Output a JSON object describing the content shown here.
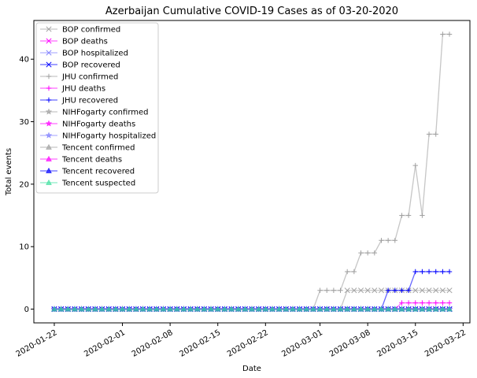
{
  "chart_data": {
    "type": "line",
    "title": "Azerbaijan Cumulative COVID-19 Cases as of 03-20-2020",
    "xlabel": "Date",
    "ylabel": "Total events",
    "x_start": "2020-01-22",
    "x_end": "2020-03-20",
    "xlim": [
      "2020-01-19",
      "2020-03-23"
    ],
    "ylim": [
      -2.2,
      46.2
    ],
    "grid": false,
    "legend_position": "top-left",
    "x_tick_labels": [
      "2020-01-22",
      "2020-02-01",
      "2020-02-08",
      "2020-02-15",
      "2020-02-22",
      "2020-03-01",
      "2020-03-08",
      "2020-03-15",
      "2020-03-22"
    ],
    "y_ticks": [
      0,
      10,
      20,
      30,
      40
    ],
    "series": [
      {
        "name": "BOP confirmed",
        "color": "#a0a0a0",
        "marker": "x",
        "points": [
          [
            "2020-01-22",
            0
          ],
          [
            "2020-03-02",
            0
          ],
          [
            "2020-03-04",
            0
          ],
          [
            "2020-03-05",
            3
          ],
          [
            "2020-03-20",
            3
          ]
        ]
      },
      {
        "name": "BOP deaths",
        "color": "#ff00ff",
        "marker": "x",
        "points": [
          [
            "2020-01-22",
            0
          ],
          [
            "2020-03-20",
            0
          ]
        ]
      },
      {
        "name": "BOP hospitalized",
        "color": "#8080ff",
        "marker": "x",
        "points": [
          [
            "2020-01-22",
            0
          ],
          [
            "2020-03-20",
            0
          ]
        ]
      },
      {
        "name": "BOP recovered",
        "color": "#0000ff",
        "marker": "x",
        "points": [
          [
            "2020-01-22",
            0
          ],
          [
            "2020-03-20",
            0
          ]
        ]
      },
      {
        "name": "JHU confirmed",
        "color": "#a0a0a0",
        "marker": "+",
        "points": [
          [
            "2020-01-22",
            0
          ],
          [
            "2020-02-29",
            0
          ],
          [
            "2020-03-01",
            3
          ],
          [
            "2020-03-04",
            3
          ],
          [
            "2020-03-05",
            6
          ],
          [
            "2020-03-06",
            6
          ],
          [
            "2020-03-07",
            9
          ],
          [
            "2020-03-09",
            9
          ],
          [
            "2020-03-10",
            11
          ],
          [
            "2020-03-12",
            11
          ],
          [
            "2020-03-13",
            15
          ],
          [
            "2020-03-14",
            15
          ],
          [
            "2020-03-15",
            23
          ],
          [
            "2020-03-16",
            15
          ],
          [
            "2020-03-17",
            28
          ],
          [
            "2020-03-18",
            28
          ],
          [
            "2020-03-19",
            44
          ],
          [
            "2020-03-20",
            44
          ]
        ]
      },
      {
        "name": "JHU deaths",
        "color": "#ff00ff",
        "marker": "+",
        "points": [
          [
            "2020-01-22",
            0
          ],
          [
            "2020-03-12",
            0
          ],
          [
            "2020-03-13",
            1
          ],
          [
            "2020-03-20",
            1
          ]
        ]
      },
      {
        "name": "JHU recovered",
        "color": "#0000ff",
        "marker": "+",
        "points": [
          [
            "2020-01-22",
            0
          ],
          [
            "2020-03-10",
            0
          ],
          [
            "2020-03-11",
            3
          ],
          [
            "2020-03-14",
            3
          ],
          [
            "2020-03-15",
            6
          ],
          [
            "2020-03-20",
            6
          ]
        ]
      },
      {
        "name": "NIHFogarty confirmed",
        "color": "#a0a0a0",
        "marker": "*",
        "points": [
          [
            "2020-01-22",
            0
          ],
          [
            "2020-03-20",
            0
          ]
        ]
      },
      {
        "name": "NIHFogarty deaths",
        "color": "#ff00ff",
        "marker": "*",
        "points": [
          [
            "2020-01-22",
            0
          ],
          [
            "2020-03-20",
            0
          ]
        ]
      },
      {
        "name": "NIHFogarty hospitalized",
        "color": "#8080ff",
        "marker": "*",
        "points": [
          [
            "2020-01-22",
            0
          ],
          [
            "2020-03-20",
            0
          ]
        ]
      },
      {
        "name": "Tencent confirmed",
        "color": "#a0a0a0",
        "marker": "^",
        "points": [
          [
            "2020-01-22",
            0
          ],
          [
            "2020-03-20",
            0
          ]
        ]
      },
      {
        "name": "Tencent deaths",
        "color": "#ff00ff",
        "marker": "^",
        "points": [
          [
            "2020-01-22",
            0
          ],
          [
            "2020-03-20",
            0
          ]
        ]
      },
      {
        "name": "Tencent recovered",
        "color": "#0000ff",
        "marker": "^",
        "points": [
          [
            "2020-01-22",
            0
          ],
          [
            "2020-03-20",
            0
          ]
        ]
      },
      {
        "name": "Tencent suspected",
        "color": "#40e0a0",
        "marker": "^",
        "points": [
          [
            "2020-01-22",
            0
          ],
          [
            "2020-03-20",
            0
          ]
        ]
      }
    ]
  }
}
